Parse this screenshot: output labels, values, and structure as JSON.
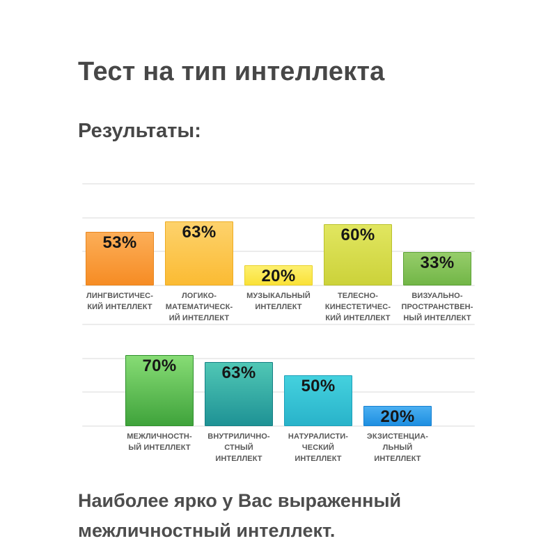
{
  "page": {
    "title": "Тест на тип интеллекта",
    "subtitle": "Результаты:",
    "conclusion_line1": "Наиболее ярко у Вас выраженный",
    "conclusion_line2": "межличностный интеллект.",
    "heading_color": "#474747",
    "conclusion_color": "#4d4d4d"
  },
  "chart_data": {
    "type": "bar",
    "title": "Результаты теста на тип интеллекта",
    "unit": "%",
    "ylim": [
      0,
      100
    ],
    "grid": true,
    "gridline_color": "#ececec",
    "value_label_color": "#161616",
    "category_label_color": "#595959",
    "legend": "none",
    "rows": [
      {
        "bars": [
          {
            "value": 53,
            "display": "53%",
            "category": "ЛИНГВИСТИЧЕС-\nКИЙ ИНТЕЛЛЕКТ",
            "color_top": "#fcae58",
            "color_bottom": "#f68c24",
            "border_color": "#e8861e"
          },
          {
            "value": 63,
            "display": "63%",
            "category": "ЛОГИКО-\nМАТЕМАТИЧЕСК-\nИЙ ИНТЕЛЛЕКТ",
            "color_top": "#fdd26c",
            "color_bottom": "#fbbb33",
            "border_color": "#edab22"
          },
          {
            "value": 20,
            "display": "20%",
            "category": "МУЗЫКАЛЬНЫЙ\nИНТЕЛЛЕКТ",
            "color_top": "#fdf06e",
            "color_bottom": "#fae138",
            "border_color": "#e9d126"
          },
          {
            "value": 60,
            "display": "60%",
            "category": "ТЕЛЕСНО-\nКИНЕСТЕТИЧЕС-\nКИЙ ИНТЕЛЛЕКТ",
            "color_top": "#e1e660",
            "color_bottom": "#ccd23a",
            "border_color": "#b9c02c"
          },
          {
            "value": 33,
            "display": "33%",
            "category": "ВИЗУАЛЬНО-\nПРОСТРАНСТВЕН-\nНЫЙ ИНТЕЛЛЕКТ",
            "color_top": "#96cd6a",
            "color_bottom": "#72b647",
            "border_color": "#5ba134"
          }
        ]
      },
      {
        "bars": [
          {
            "value": 70,
            "display": "70%",
            "category": "МЕЖЛИЧНОСТН-\nЫЙ ИНТЕЛЛЕКТ",
            "color_top": "#87dc75",
            "color_bottom": "#3fa33b",
            "border_color": "#2e8f2c"
          },
          {
            "value": 63,
            "display": "63%",
            "category": "ВНУТРИЛИЧНО-\nСТНЫЙ\nИНТЕЛЛЕКТ",
            "color_top": "#50c7b5",
            "color_bottom": "#1e9295",
            "border_color": "#157f84"
          },
          {
            "value": 50,
            "display": "50%",
            "category": "НАТУРАЛИСТИ-\nЧЕСКИЙ\nИНТЕЛЛЕКТ",
            "color_top": "#44d1de",
            "color_bottom": "#29b3ca",
            "border_color": "#1b9fb9"
          },
          {
            "value": 20,
            "display": "20%",
            "category": "ЭКЗИСТЕНЦИА-\nЛЬНЫЙ\nИНТЕЛЛЕКТ",
            "color_top": "#4aaff1",
            "color_bottom": "#1e8fe1",
            "border_color": "#157fd0"
          }
        ]
      }
    ]
  }
}
